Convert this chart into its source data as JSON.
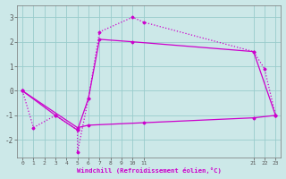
{
  "bg_color": "#cce8e8",
  "grid_color": "#99cccc",
  "line_color": "#cc00cc",
  "xlim": [
    -0.5,
    23.5
  ],
  "ylim": [
    -2.7,
    3.5
  ],
  "xlabel": "Windchill (Refroidissement éolien,°C)",
  "xticks": [
    0,
    1,
    2,
    3,
    4,
    5,
    6,
    7,
    8,
    9,
    10,
    11,
    21,
    22,
    23
  ],
  "xtick_labels": [
    "0",
    "1",
    "2",
    "3",
    "4",
    "5",
    "6",
    "7",
    "8",
    "9",
    "10",
    "11",
    "21",
    "22",
    "23"
  ],
  "yticks": [
    -2,
    -1,
    0,
    1,
    2,
    3
  ],
  "line1_x": [
    0,
    1,
    3,
    5,
    5,
    6,
    7,
    10,
    11,
    21,
    22,
    23
  ],
  "line1_y": [
    0,
    -1.5,
    -1.0,
    -1.6,
    -2.5,
    -0.3,
    2.4,
    3.0,
    2.8,
    1.6,
    0.9,
    -1.0
  ],
  "line2_x": [
    0,
    3,
    5,
    6,
    7,
    10,
    21,
    23
  ],
  "line2_y": [
    0,
    -1.0,
    -1.6,
    -0.3,
    2.1,
    2.0,
    1.6,
    -1.0
  ],
  "line3_x": [
    0,
    5,
    6,
    11,
    21,
    23
  ],
  "line3_y": [
    0,
    -1.5,
    -1.4,
    -1.3,
    -1.1,
    -1.0
  ]
}
